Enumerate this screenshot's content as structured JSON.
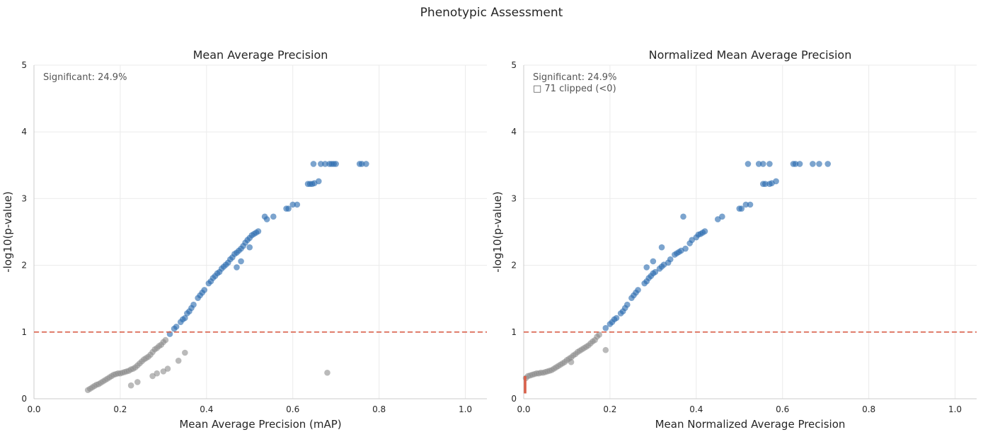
{
  "figure_title": "Phenotypic Assessment",
  "colors": {
    "significant": "#2b6cb0",
    "nonsignificant": "#8c8c8c",
    "threshold": "#d9604a",
    "clipped": "#d9604a"
  },
  "chart_data": [
    {
      "type": "scatter",
      "title": "Mean Average Precision",
      "xlabel": "Mean Average Precision (mAP)",
      "ylabel": "-log10(p-value)",
      "xlim": [
        0.0,
        1.05
      ],
      "ylim": [
        0,
        5
      ],
      "xticks": [
        "0.0",
        "0.2",
        "0.4",
        "0.6",
        "0.8",
        "1.0"
      ],
      "yticks": [
        "0",
        "1",
        "2",
        "3",
        "4",
        "5"
      ],
      "grid": true,
      "threshold_y": 1.0,
      "annotation": "Significant: 24.9%",
      "significant_points": [
        [
          0.315,
          0.97
        ],
        [
          0.325,
          1.05
        ],
        [
          0.33,
          1.08
        ],
        [
          0.34,
          1.15
        ],
        [
          0.345,
          1.19
        ],
        [
          0.35,
          1.21
        ],
        [
          0.355,
          1.28
        ],
        [
          0.36,
          1.31
        ],
        [
          0.365,
          1.36
        ],
        [
          0.37,
          1.41
        ],
        [
          0.38,
          1.51
        ],
        [
          0.385,
          1.55
        ],
        [
          0.39,
          1.59
        ],
        [
          0.395,
          1.63
        ],
        [
          0.405,
          1.73
        ],
        [
          0.41,
          1.76
        ],
        [
          0.415,
          1.81
        ],
        [
          0.42,
          1.84
        ],
        [
          0.425,
          1.88
        ],
        [
          0.43,
          1.9
        ],
        [
          0.435,
          1.95
        ],
        [
          0.44,
          1.98
        ],
        [
          0.445,
          2.01
        ],
        [
          0.45,
          2.04
        ],
        [
          0.455,
          2.09
        ],
        [
          0.46,
          2.12
        ],
        [
          0.465,
          2.17
        ],
        [
          0.47,
          2.19
        ],
        [
          0.475,
          2.22
        ],
        [
          0.48,
          2.25
        ],
        [
          0.485,
          2.29
        ],
        [
          0.49,
          2.34
        ],
        [
          0.495,
          2.38
        ],
        [
          0.5,
          2.41
        ],
        [
          0.505,
          2.45
        ],
        [
          0.51,
          2.47
        ],
        [
          0.515,
          2.49
        ],
        [
          0.52,
          2.51
        ],
        [
          0.47,
          1.97
        ],
        [
          0.48,
          2.06
        ],
        [
          0.5,
          2.27
        ],
        [
          0.535,
          2.73
        ],
        [
          0.54,
          2.69
        ],
        [
          0.555,
          2.73
        ],
        [
          0.585,
          2.85
        ],
        [
          0.59,
          2.85
        ],
        [
          0.6,
          2.91
        ],
        [
          0.61,
          2.91
        ],
        [
          0.635,
          3.22
        ],
        [
          0.64,
          3.22
        ],
        [
          0.645,
          3.22
        ],
        [
          0.65,
          3.23
        ],
        [
          0.66,
          3.26
        ],
        [
          0.648,
          3.52
        ],
        [
          0.665,
          3.52
        ],
        [
          0.675,
          3.52
        ],
        [
          0.685,
          3.52
        ],
        [
          0.69,
          3.52
        ],
        [
          0.695,
          3.52
        ],
        [
          0.7,
          3.52
        ],
        [
          0.755,
          3.52
        ],
        [
          0.76,
          3.52
        ],
        [
          0.77,
          3.52
        ]
      ],
      "nonsignificant_points": [
        [
          0.125,
          0.13
        ],
        [
          0.13,
          0.15
        ],
        [
          0.135,
          0.17
        ],
        [
          0.14,
          0.19
        ],
        [
          0.145,
          0.21
        ],
        [
          0.15,
          0.22
        ],
        [
          0.155,
          0.24
        ],
        [
          0.16,
          0.26
        ],
        [
          0.165,
          0.28
        ],
        [
          0.17,
          0.3
        ],
        [
          0.175,
          0.32
        ],
        [
          0.18,
          0.34
        ],
        [
          0.185,
          0.36
        ],
        [
          0.19,
          0.37
        ],
        [
          0.195,
          0.38
        ],
        [
          0.2,
          0.38
        ],
        [
          0.205,
          0.39
        ],
        [
          0.21,
          0.4
        ],
        [
          0.215,
          0.41
        ],
        [
          0.22,
          0.42
        ],
        [
          0.225,
          0.44
        ],
        [
          0.23,
          0.45
        ],
        [
          0.235,
          0.47
        ],
        [
          0.24,
          0.5
        ],
        [
          0.245,
          0.53
        ],
        [
          0.25,
          0.56
        ],
        [
          0.255,
          0.59
        ],
        [
          0.26,
          0.61
        ],
        [
          0.265,
          0.63
        ],
        [
          0.27,
          0.66
        ],
        [
          0.275,
          0.7
        ],
        [
          0.28,
          0.74
        ],
        [
          0.285,
          0.76
        ],
        [
          0.29,
          0.79
        ],
        [
          0.295,
          0.81
        ],
        [
          0.3,
          0.85
        ],
        [
          0.305,
          0.88
        ],
        [
          0.225,
          0.2
        ],
        [
          0.24,
          0.25
        ],
        [
          0.275,
          0.34
        ],
        [
          0.285,
          0.38
        ],
        [
          0.3,
          0.41
        ],
        [
          0.31,
          0.45
        ],
        [
          0.335,
          0.57
        ],
        [
          0.35,
          0.69
        ],
        [
          0.68,
          0.39
        ]
      ]
    },
    {
      "type": "scatter",
      "title": "Normalized Mean Average Precision",
      "xlabel": "Mean Normalized Average Precision",
      "ylabel": "-log10(p-value)",
      "xlim": [
        0.0,
        1.05
      ],
      "ylim": [
        0,
        5
      ],
      "xticks": [
        "0.0",
        "0.2",
        "0.4",
        "0.6",
        "0.8",
        "1.0"
      ],
      "yticks": [
        "0",
        "1",
        "2",
        "3",
        "4",
        "5"
      ],
      "grid": true,
      "threshold_y": 1.0,
      "annotation": "Significant: 24.9%",
      "annotation2": "□ 71 clipped (<0)",
      "clipped_x": 0.0,
      "clipped_yrange": [
        0.08,
        0.34
      ],
      "significant_points": [
        [
          0.19,
          1.06
        ],
        [
          0.2,
          1.12
        ],
        [
          0.205,
          1.15
        ],
        [
          0.21,
          1.19
        ],
        [
          0.215,
          1.21
        ],
        [
          0.225,
          1.28
        ],
        [
          0.23,
          1.31
        ],
        [
          0.235,
          1.36
        ],
        [
          0.24,
          1.41
        ],
        [
          0.25,
          1.51
        ],
        [
          0.255,
          1.55
        ],
        [
          0.26,
          1.59
        ],
        [
          0.265,
          1.63
        ],
        [
          0.28,
          1.73
        ],
        [
          0.285,
          1.76
        ],
        [
          0.29,
          1.81
        ],
        [
          0.295,
          1.84
        ],
        [
          0.3,
          1.88
        ],
        [
          0.305,
          1.9
        ],
        [
          0.315,
          1.95
        ],
        [
          0.32,
          1.98
        ],
        [
          0.325,
          2.01
        ],
        [
          0.335,
          2.04
        ],
        [
          0.34,
          2.09
        ],
        [
          0.35,
          2.16
        ],
        [
          0.355,
          2.18
        ],
        [
          0.36,
          2.2
        ],
        [
          0.365,
          2.22
        ],
        [
          0.375,
          2.25
        ],
        [
          0.385,
          2.33
        ],
        [
          0.39,
          2.38
        ],
        [
          0.4,
          2.42
        ],
        [
          0.405,
          2.46
        ],
        [
          0.41,
          2.47
        ],
        [
          0.415,
          2.49
        ],
        [
          0.42,
          2.51
        ],
        [
          0.285,
          1.97
        ],
        [
          0.3,
          2.06
        ],
        [
          0.32,
          2.27
        ],
        [
          0.37,
          2.73
        ],
        [
          0.45,
          2.69
        ],
        [
          0.46,
          2.73
        ],
        [
          0.5,
          2.85
        ],
        [
          0.505,
          2.85
        ],
        [
          0.515,
          2.91
        ],
        [
          0.525,
          2.91
        ],
        [
          0.555,
          3.22
        ],
        [
          0.56,
          3.22
        ],
        [
          0.57,
          3.22
        ],
        [
          0.575,
          3.23
        ],
        [
          0.585,
          3.26
        ],
        [
          0.52,
          3.52
        ],
        [
          0.545,
          3.52
        ],
        [
          0.555,
          3.52
        ],
        [
          0.57,
          3.52
        ],
        [
          0.625,
          3.52
        ],
        [
          0.63,
          3.52
        ],
        [
          0.64,
          3.52
        ],
        [
          0.67,
          3.52
        ],
        [
          0.685,
          3.52
        ],
        [
          0.705,
          3.52
        ]
      ],
      "nonsignificant_points": [
        [
          0.005,
          0.31
        ],
        [
          0.01,
          0.34
        ],
        [
          0.015,
          0.35
        ],
        [
          0.02,
          0.36
        ],
        [
          0.025,
          0.37
        ],
        [
          0.03,
          0.38
        ],
        [
          0.035,
          0.38
        ],
        [
          0.04,
          0.39
        ],
        [
          0.045,
          0.39
        ],
        [
          0.05,
          0.4
        ],
        [
          0.055,
          0.41
        ],
        [
          0.06,
          0.42
        ],
        [
          0.065,
          0.43
        ],
        [
          0.07,
          0.45
        ],
        [
          0.075,
          0.47
        ],
        [
          0.08,
          0.49
        ],
        [
          0.085,
          0.51
        ],
        [
          0.09,
          0.53
        ],
        [
          0.095,
          0.55
        ],
        [
          0.1,
          0.58
        ],
        [
          0.105,
          0.6
        ],
        [
          0.11,
          0.62
        ],
        [
          0.115,
          0.65
        ],
        [
          0.12,
          0.67
        ],
        [
          0.125,
          0.7
        ],
        [
          0.13,
          0.72
        ],
        [
          0.135,
          0.74
        ],
        [
          0.14,
          0.76
        ],
        [
          0.145,
          0.78
        ],
        [
          0.15,
          0.8
        ],
        [
          0.155,
          0.83
        ],
        [
          0.16,
          0.86
        ],
        [
          0.165,
          0.88
        ],
        [
          0.17,
          0.93
        ],
        [
          0.175,
          0.96
        ],
        [
          0.11,
          0.55
        ],
        [
          0.19,
          0.73
        ]
      ]
    }
  ]
}
